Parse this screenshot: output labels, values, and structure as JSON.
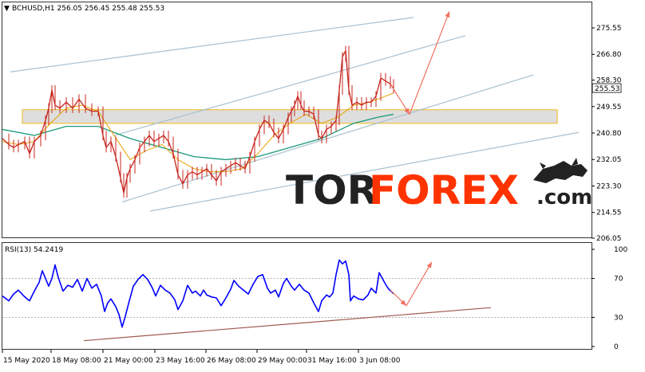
{
  "header": {
    "symbol_line": "BCHUSD,H1  256.05 256.45 255.48 255.53"
  },
  "rsi_panel": {
    "label": "RSI(13) 54.2419",
    "ticks": [
      "100",
      "70",
      "30",
      "0"
    ]
  },
  "watermark": {
    "part1": "TOR",
    "part2": "FOREX",
    "part3": ".com",
    "icon": "bull-bear-logo"
  },
  "colors": {
    "candles": "#c8241c",
    "ma_fast": "#e8a000",
    "ma_slow": "#1a9a7a",
    "channel": "#a8c0d0",
    "rsi": "#0000ff",
    "rsi_trend": "#a05a50",
    "arrow": "#f07060",
    "zone_fill": "#d8d8d8",
    "zone_border": "#f0c040",
    "watermark_dark": "#222222",
    "watermark_accent": "#ff3300"
  },
  "chart_data": {
    "type": "line",
    "price_axis": {
      "ticks": [
        {
          "label": "275.55",
          "value": 275.55
        },
        {
          "label": "266.80",
          "value": 266.8
        },
        {
          "label": "258.30",
          "value": 258.3
        },
        {
          "label": "249.55",
          "value": 249.55
        },
        {
          "label": "240.80",
          "value": 240.8
        },
        {
          "label": "232.05",
          "value": 232.05
        },
        {
          "label": "223.30",
          "value": 223.3
        },
        {
          "label": "214.55",
          "value": 214.55
        },
        {
          "label": "206.05",
          "value": 206.05
        }
      ],
      "current_label": "255.53",
      "current": 255.53
    },
    "time_axis": [
      "15 May 2020",
      "18 May 08:00",
      "21 May 00:00",
      "23 May 16:00",
      "26 May 08:00",
      "29 May 00:00",
      "31 May 16:00",
      "3 Jun 08:00"
    ],
    "price_series": [
      [
        0,
        239
      ],
      [
        8,
        237
      ],
      [
        14,
        236
      ],
      [
        20,
        237
      ],
      [
        28,
        238
      ],
      [
        34,
        234
      ],
      [
        40,
        238
      ],
      [
        48,
        240
      ],
      [
        54,
        245
      ],
      [
        58,
        249
      ],
      [
        62,
        255
      ],
      [
        66,
        250
      ],
      [
        72,
        249
      ],
      [
        80,
        251
      ],
      [
        88,
        249
      ],
      [
        96,
        252
      ],
      [
        104,
        249
      ],
      [
        112,
        248
      ],
      [
        120,
        248
      ],
      [
        126,
        240
      ],
      [
        130,
        236
      ],
      [
        136,
        238
      ],
      [
        142,
        233
      ],
      [
        148,
        226
      ],
      [
        152,
        221
      ],
      [
        156,
        226
      ],
      [
        160,
        229
      ],
      [
        166,
        232
      ],
      [
        172,
        236
      ],
      [
        178,
        238
      ],
      [
        184,
        240
      ],
      [
        190,
        238
      ],
      [
        196,
        239
      ],
      [
        202,
        240
      ],
      [
        208,
        238
      ],
      [
        214,
        234
      ],
      [
        220,
        227
      ],
      [
        226,
        224
      ],
      [
        232,
        227
      ],
      [
        238,
        228
      ],
      [
        244,
        227
      ],
      [
        250,
        228
      ],
      [
        256,
        229
      ],
      [
        262,
        227
      ],
      [
        268,
        225
      ],
      [
        274,
        228
      ],
      [
        280,
        229
      ],
      [
        286,
        230
      ],
      [
        292,
        231
      ],
      [
        298,
        230
      ],
      [
        304,
        229
      ],
      [
        310,
        233
      ],
      [
        316,
        238
      ],
      [
        322,
        242
      ],
      [
        328,
        245
      ],
      [
        334,
        244
      ],
      [
        340,
        241
      ],
      [
        346,
        239
      ],
      [
        352,
        242
      ],
      [
        358,
        246
      ],
      [
        362,
        248
      ],
      [
        366,
        250
      ],
      [
        370,
        253
      ],
      [
        374,
        250
      ],
      [
        378,
        248
      ],
      [
        384,
        248
      ],
      [
        390,
        247
      ],
      [
        396,
        240
      ],
      [
        400,
        239
      ],
      [
        406,
        242
      ],
      [
        412,
        243
      ],
      [
        418,
        245
      ],
      [
        422,
        255
      ],
      [
        426,
        266
      ],
      [
        430,
        268
      ],
      [
        434,
        255
      ],
      [
        438,
        250
      ],
      [
        444,
        251
      ],
      [
        450,
        250
      ],
      [
        456,
        251
      ],
      [
        462,
        251
      ],
      [
        468,
        253
      ],
      [
        474,
        259
      ],
      [
        480,
        258
      ],
      [
        486,
        257
      ],
      [
        490,
        255.5
      ]
    ],
    "ma_fast": [
      [
        0,
        238
      ],
      [
        20,
        237
      ],
      [
        40,
        238
      ],
      [
        60,
        244
      ],
      [
        80,
        249
      ],
      [
        100,
        250
      ],
      [
        120,
        248
      ],
      [
        140,
        240
      ],
      [
        160,
        232
      ],
      [
        180,
        235
      ],
      [
        200,
        237
      ],
      [
        220,
        232
      ],
      [
        240,
        229
      ],
      [
        260,
        228
      ],
      [
        280,
        228
      ],
      [
        300,
        229
      ],
      [
        320,
        234
      ],
      [
        340,
        240
      ],
      [
        360,
        244
      ],
      [
        380,
        247
      ],
      [
        400,
        244
      ],
      [
        420,
        246
      ],
      [
        440,
        250
      ],
      [
        460,
        251
      ],
      [
        480,
        253
      ],
      [
        490,
        254
      ]
    ],
    "ma_slow": [
      [
        0,
        242
      ],
      [
        40,
        240
      ],
      [
        80,
        243
      ],
      [
        120,
        243
      ],
      [
        160,
        239
      ],
      [
        200,
        236
      ],
      [
        240,
        233
      ],
      [
        280,
        232
      ],
      [
        320,
        233
      ],
      [
        360,
        236
      ],
      [
        400,
        239
      ],
      [
        440,
        244
      ],
      [
        470,
        246
      ],
      [
        490,
        247
      ]
    ],
    "channel_lines": [
      {
        "from": [
          10,
          261
        ],
        "to": [
          515,
          279
        ]
      },
      {
        "from": [
          140,
          240
        ],
        "to": [
          580,
          273
        ]
      },
      {
        "from": [
          150,
          218
        ],
        "to": [
          665,
          260
        ]
      },
      {
        "from": [
          185,
          215
        ],
        "to": [
          722,
          241
        ]
      }
    ],
    "resistance_zone": {
      "from_index": 28,
      "to_index": 698,
      "low": 244,
      "high": 248.5
    },
    "forecast_price": [
      [
        486,
        257
      ],
      [
        510,
        247
      ],
      [
        560,
        281
      ]
    ],
    "rsi": {
      "range": [
        0,
        100
      ],
      "levels": [
        30,
        70
      ],
      "current": 54.2419,
      "series": [
        [
          0,
          52
        ],
        [
          8,
          47
        ],
        [
          14,
          54
        ],
        [
          20,
          58
        ],
        [
          28,
          51
        ],
        [
          34,
          47
        ],
        [
          40,
          57
        ],
        [
          46,
          66
        ],
        [
          50,
          78
        ],
        [
          54,
          70
        ],
        [
          58,
          62
        ],
        [
          62,
          70
        ],
        [
          66,
          84
        ],
        [
          70,
          71
        ],
        [
          76,
          57
        ],
        [
          82,
          63
        ],
        [
          88,
          61
        ],
        [
          94,
          69
        ],
        [
          100,
          57
        ],
        [
          106,
          70
        ],
        [
          112,
          60
        ],
        [
          118,
          64
        ],
        [
          124,
          52
        ],
        [
          128,
          36
        ],
        [
          132,
          45
        ],
        [
          136,
          49
        ],
        [
          142,
          41
        ],
        [
          146,
          33
        ],
        [
          150,
          20
        ],
        [
          154,
          31
        ],
        [
          158,
          44
        ],
        [
          164,
          62
        ],
        [
          170,
          69
        ],
        [
          176,
          74
        ],
        [
          182,
          69
        ],
        [
          188,
          60
        ],
        [
          192,
          52
        ],
        [
          198,
          63
        ],
        [
          204,
          58
        ],
        [
          210,
          55
        ],
        [
          216,
          48
        ],
        [
          220,
          38
        ],
        [
          226,
          47
        ],
        [
          232,
          63
        ],
        [
          238,
          55
        ],
        [
          242,
          57
        ],
        [
          248,
          52
        ],
        [
          252,
          58
        ],
        [
          256,
          53
        ],
        [
          262,
          51
        ],
        [
          268,
          50
        ],
        [
          274,
          42
        ],
        [
          280,
          50
        ],
        [
          286,
          59
        ],
        [
          290,
          68
        ],
        [
          296,
          62
        ],
        [
          302,
          58
        ],
        [
          308,
          54
        ],
        [
          314,
          64
        ],
        [
          320,
          72
        ],
        [
          326,
          74
        ],
        [
          332,
          60
        ],
        [
          336,
          55
        ],
        [
          342,
          58
        ],
        [
          346,
          51
        ],
        [
          352,
          65
        ],
        [
          356,
          70
        ],
        [
          362,
          62
        ],
        [
          366,
          58
        ],
        [
          372,
          64
        ],
        [
          378,
          58
        ],
        [
          384,
          55
        ],
        [
          390,
          45
        ],
        [
          396,
          36
        ],
        [
          400,
          47
        ],
        [
          406,
          53
        ],
        [
          410,
          51
        ],
        [
          414,
          55
        ],
        [
          418,
          74
        ],
        [
          422,
          89
        ],
        [
          426,
          85
        ],
        [
          430,
          88
        ],
        [
          434,
          74
        ],
        [
          436,
          47
        ],
        [
          440,
          52
        ],
        [
          446,
          49
        ],
        [
          452,
          48
        ],
        [
          458,
          53
        ],
        [
          462,
          60
        ],
        [
          468,
          55
        ],
        [
          472,
          76
        ],
        [
          476,
          70
        ],
        [
          480,
          64
        ],
        [
          484,
          59
        ],
        [
          488,
          56
        ],
        [
          490,
          54.2
        ]
      ],
      "trend_line": {
        "from": [
          102,
          6
        ],
        "to": [
          612,
          40
        ]
      },
      "forecast": [
        [
          486,
          58
        ],
        [
          506,
          42
        ],
        [
          538,
          87
        ]
      ]
    }
  }
}
